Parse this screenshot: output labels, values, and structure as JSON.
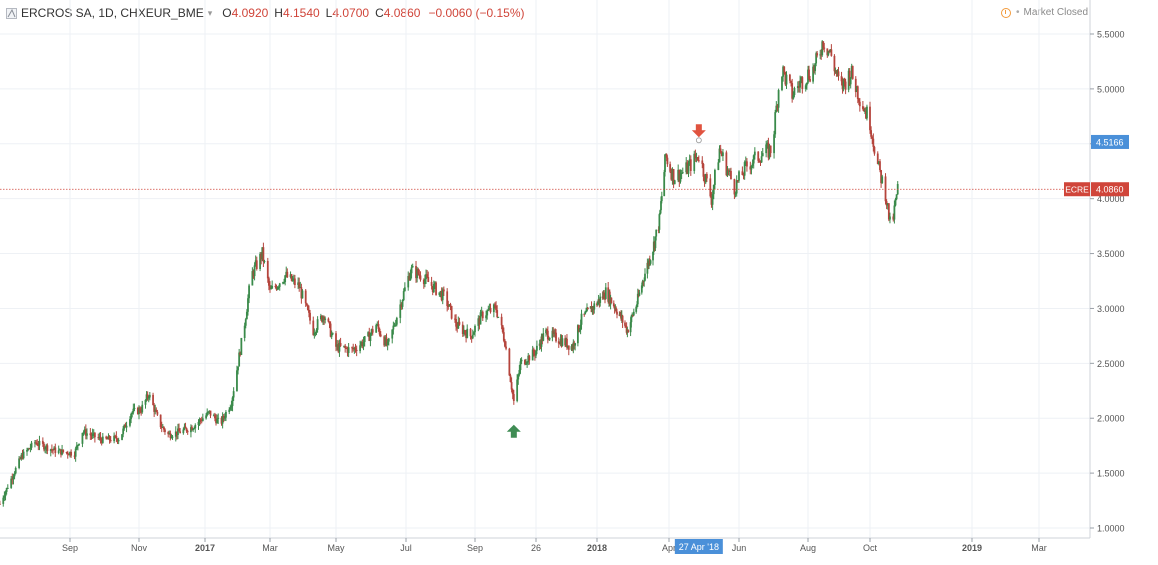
{
  "header": {
    "symbol": "ERCROS SA, 1D, CHXEUR_BME",
    "caret": "▾",
    "ohlc": [
      {
        "label": "O",
        "value": "4.0920"
      },
      {
        "label": "H",
        "value": "4.1540"
      },
      {
        "label": "L",
        "value": "4.0700"
      },
      {
        "label": "C",
        "value": "4.0860"
      }
    ],
    "change": "−0.0060 (−0.15%)"
  },
  "market_status": {
    "text": "Market Closed",
    "separator": "•"
  },
  "colors": {
    "up": "#3a8a4a",
    "down": "#b5443c",
    "last_price_line": "#d0453a",
    "crosshair_label": "#4a90d9",
    "grid": "#eef1f5"
  },
  "chart_data": {
    "type": "candlestick",
    "symbol": "ERCROS SA",
    "interval": "1D",
    "exchange": "CHXEUR_BME",
    "x_ticks": [
      "Sep",
      "Nov",
      "2017",
      "Mar",
      "May",
      "Jul",
      "Sep",
      "26",
      "2018",
      "Apr",
      "Jun",
      "Aug",
      "Oct",
      "2019",
      "Mar"
    ],
    "x_ticks_bold": [
      "2017",
      "2018",
      "2019"
    ],
    "y_ticks": [
      "1.0000",
      "1.5000",
      "2.0000",
      "2.5000",
      "3.0000",
      "3.5000",
      "4.0000",
      "4.5000",
      "5.0000",
      "5.5000"
    ],
    "ylim": [
      1.0,
      5.5
    ],
    "y_scale": "linear",
    "grid": true,
    "last_price": {
      "label": "ECRE",
      "value": "4.0860",
      "price": 4.086
    },
    "crosshair": {
      "price_label": "4.5166",
      "price": 4.5166,
      "date_label": "27 Apr '18"
    },
    "markers": [
      {
        "type": "buy",
        "date": "2017-10-06",
        "price": 2.05
      },
      {
        "type": "sell",
        "date": "2018-04-27",
        "price": 4.55
      }
    ],
    "price_path": [
      [
        "2016-07-01",
        1.22
      ],
      [
        "2016-07-20",
        1.65
      ],
      [
        "2016-08-01",
        1.78
      ],
      [
        "2016-08-20",
        1.7
      ],
      [
        "2016-09-05",
        1.68
      ],
      [
        "2016-09-12",
        1.88
      ],
      [
        "2016-09-30",
        1.8
      ],
      [
        "2016-10-15",
        1.82
      ],
      [
        "2016-10-25",
        2.05
      ],
      [
        "2016-11-03",
        2.08
      ],
      [
        "2016-11-10",
        2.22
      ],
      [
        "2016-11-20",
        1.95
      ],
      [
        "2016-11-28",
        1.85
      ],
      [
        "2016-12-10",
        1.88
      ],
      [
        "2016-12-20",
        1.92
      ],
      [
        "2017-01-05",
        2.05
      ],
      [
        "2017-01-15",
        1.95
      ],
      [
        "2017-01-25",
        2.15
      ],
      [
        "2017-02-05",
        2.8
      ],
      [
        "2017-02-12",
        3.3
      ],
      [
        "2017-02-22",
        3.5
      ],
      [
        "2017-03-01",
        3.15
      ],
      [
        "2017-03-15",
        3.3
      ],
      [
        "2017-03-28",
        3.2
      ],
      [
        "2017-04-10",
        2.8
      ],
      [
        "2017-04-20",
        2.95
      ],
      [
        "2017-05-01",
        2.65
      ],
      [
        "2017-05-15",
        2.62
      ],
      [
        "2017-05-28",
        2.72
      ],
      [
        "2017-06-05",
        2.85
      ],
      [
        "2017-06-15",
        2.65
      ],
      [
        "2017-06-25",
        3.0
      ],
      [
        "2017-07-05",
        3.35
      ],
      [
        "2017-07-15",
        3.3
      ],
      [
        "2017-07-25",
        3.2
      ],
      [
        "2017-08-05",
        3.1
      ],
      [
        "2017-08-15",
        2.85
      ],
      [
        "2017-08-28",
        2.75
      ],
      [
        "2017-09-08",
        2.95
      ],
      [
        "2017-09-20",
        3.0
      ],
      [
        "2017-09-28",
        2.7
      ],
      [
        "2017-10-06",
        2.15
      ],
      [
        "2017-10-12",
        2.5
      ],
      [
        "2017-10-25",
        2.6
      ],
      [
        "2017-11-05",
        2.78
      ],
      [
        "2017-11-20",
        2.72
      ],
      [
        "2017-12-05",
        2.65
      ],
      [
        "2017-12-15",
        2.9
      ],
      [
        "2018-01-01",
        3.05
      ],
      [
        "2018-01-12",
        3.15
      ],
      [
        "2018-01-25",
        3.0
      ],
      [
        "2018-02-08",
        2.8
      ],
      [
        "2018-02-20",
        3.05
      ],
      [
        "2018-03-01",
        3.3
      ],
      [
        "2018-03-12",
        3.55
      ],
      [
        "2018-03-20",
        3.8
      ],
      [
        "2018-03-28",
        4.4
      ],
      [
        "2018-04-05",
        4.2
      ],
      [
        "2018-04-15",
        4.25
      ],
      [
        "2018-04-27",
        4.4
      ],
      [
        "2018-05-08",
        4.0
      ],
      [
        "2018-05-15",
        4.45
      ],
      [
        "2018-05-28",
        4.1
      ],
      [
        "2018-06-08",
        4.3
      ],
      [
        "2018-06-20",
        4.4
      ],
      [
        "2018-06-30",
        4.45
      ],
      [
        "2018-07-08",
        5.2
      ],
      [
        "2018-07-18",
        4.95
      ],
      [
        "2018-07-28",
        5.1
      ],
      [
        "2018-08-08",
        5.2
      ],
      [
        "2018-08-16",
        5.45
      ],
      [
        "2018-08-24",
        5.3
      ],
      [
        "2018-09-02",
        5.0
      ],
      [
        "2018-09-12",
        5.15
      ],
      [
        "2018-09-22",
        4.9
      ],
      [
        "2018-10-01",
        4.7
      ],
      [
        "2018-10-08",
        4.3
      ],
      [
        "2018-10-15",
        4.05
      ],
      [
        "2018-10-20",
        3.7
      ],
      [
        "2018-10-26",
        4.09
      ]
    ]
  }
}
